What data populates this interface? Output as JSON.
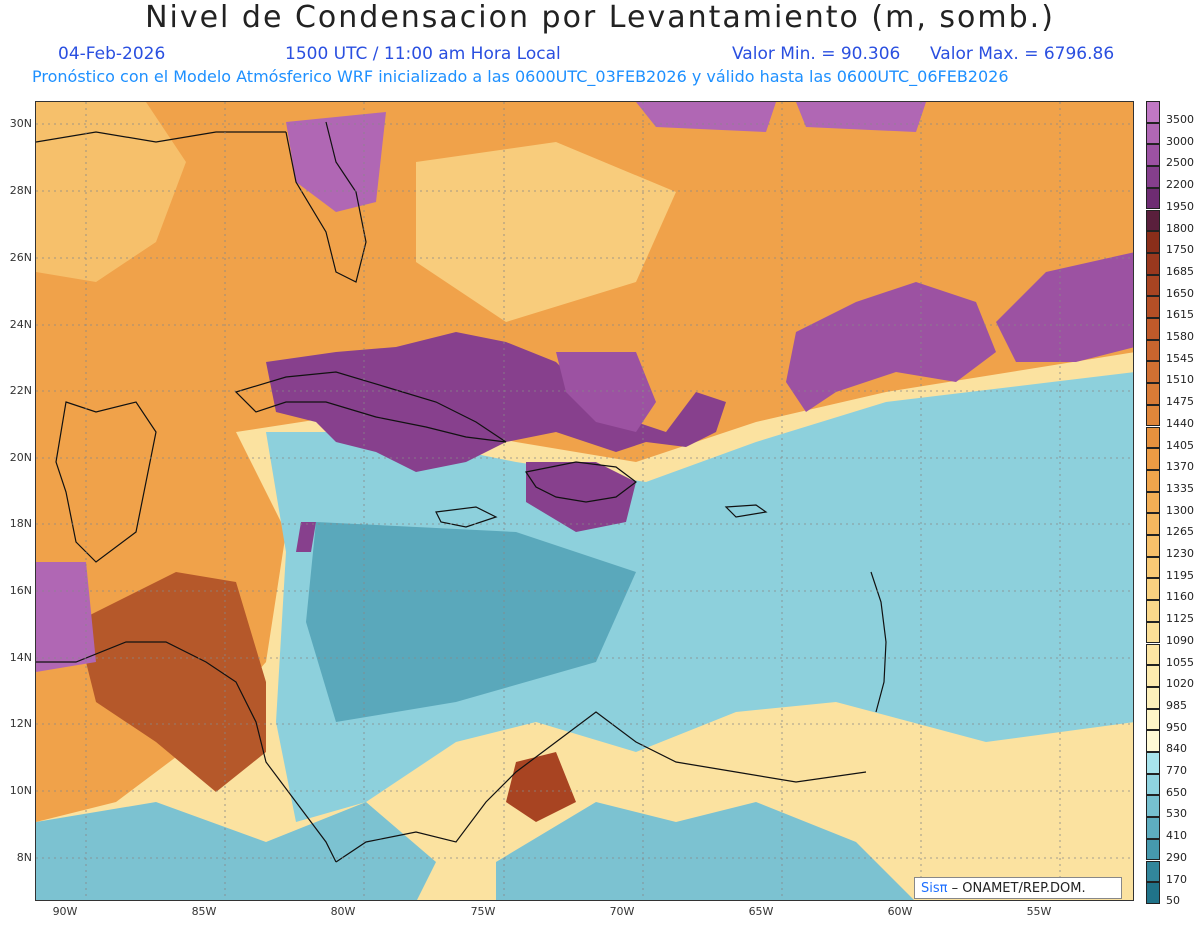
{
  "title": "Nivel de Condensacion por Levantamiento (m, somb.)",
  "date": "04-Feb-2026",
  "time": "1500 UTC / 11:00 am Hora Local",
  "min": "Valor Min. = 90.306",
  "max": "Valor Max. = 6796.86",
  "forecast": "Pronóstico con el Modelo Atmósferico WRF inicializado a las 0600UTC_03FEB2026 y válido hasta las  0600UTC_06FEB2026",
  "lat_labels": [
    "30N",
    "28N",
    "26N",
    "24N",
    "22N",
    "20N",
    "18N",
    "16N",
    "14N",
    "12N",
    "10N",
    "8N"
  ],
  "lon_labels": [
    "90W",
    "85W",
    "80W",
    "75W",
    "70W",
    "65W",
    "60W",
    "55W"
  ],
  "legend": [
    {
      "label": "3500",
      "color": "#c078c4"
    },
    {
      "label": "3000",
      "color": "#b067b4"
    },
    {
      "label": "2500",
      "color": "#9c52a2"
    },
    {
      "label": "2200",
      "color": "#853f8c"
    },
    {
      "label": "1950",
      "color": "#6e2c72"
    },
    {
      "label": "1800",
      "color": "#5a1f3c"
    },
    {
      "label": "1750",
      "color": "#8a2e1a"
    },
    {
      "label": "1685",
      "color": "#99381e"
    },
    {
      "label": "1650",
      "color": "#a84422"
    },
    {
      "label": "1615",
      "color": "#b54f26"
    },
    {
      "label": "1580",
      "color": "#c05a2a"
    },
    {
      "label": "1545",
      "color": "#c9652e"
    },
    {
      "label": "1510",
      "color": "#d17032"
    },
    {
      "label": "1475",
      "color": "#d97b36"
    },
    {
      "label": "1440",
      "color": "#e0863a"
    },
    {
      "label": "1405",
      "color": "#e6913e"
    },
    {
      "label": "1370",
      "color": "#ec9b44"
    },
    {
      "label": "1335",
      "color": "#f0a54c"
    },
    {
      "label": "1300",
      "color": "#f3ae55"
    },
    {
      "label": "1265",
      "color": "#f5b75f"
    },
    {
      "label": "1230",
      "color": "#f7c06a"
    },
    {
      "label": "1195",
      "color": "#f8c975"
    },
    {
      "label": "1160",
      "color": "#f9d180"
    },
    {
      "label": "1125",
      "color": "#fad88b"
    },
    {
      "label": "1090",
      "color": "#fbdf97"
    },
    {
      "label": "1055",
      "color": "#fce5a3"
    },
    {
      "label": "1020",
      "color": "#fdebaf"
    },
    {
      "label": "985",
      "color": "#fdf0bb"
    },
    {
      "label": "950",
      "color": "#fef5c8"
    },
    {
      "label": "840",
      "color": "#fffad6"
    },
    {
      "label": "770",
      "color": "#a8e4ec"
    },
    {
      "label": "650",
      "color": "#8fd3df"
    },
    {
      "label": "530",
      "color": "#76c0cf"
    },
    {
      "label": "410",
      "color": "#5eadbf"
    },
    {
      "label": "290",
      "color": "#4699ad"
    },
    {
      "label": "170",
      "color": "#32869b"
    },
    {
      "label": "50",
      "color": "#207389"
    }
  ],
  "credit_logo": "Sisπ",
  "credit_text": "– ONAMET/REP.DOM."
}
